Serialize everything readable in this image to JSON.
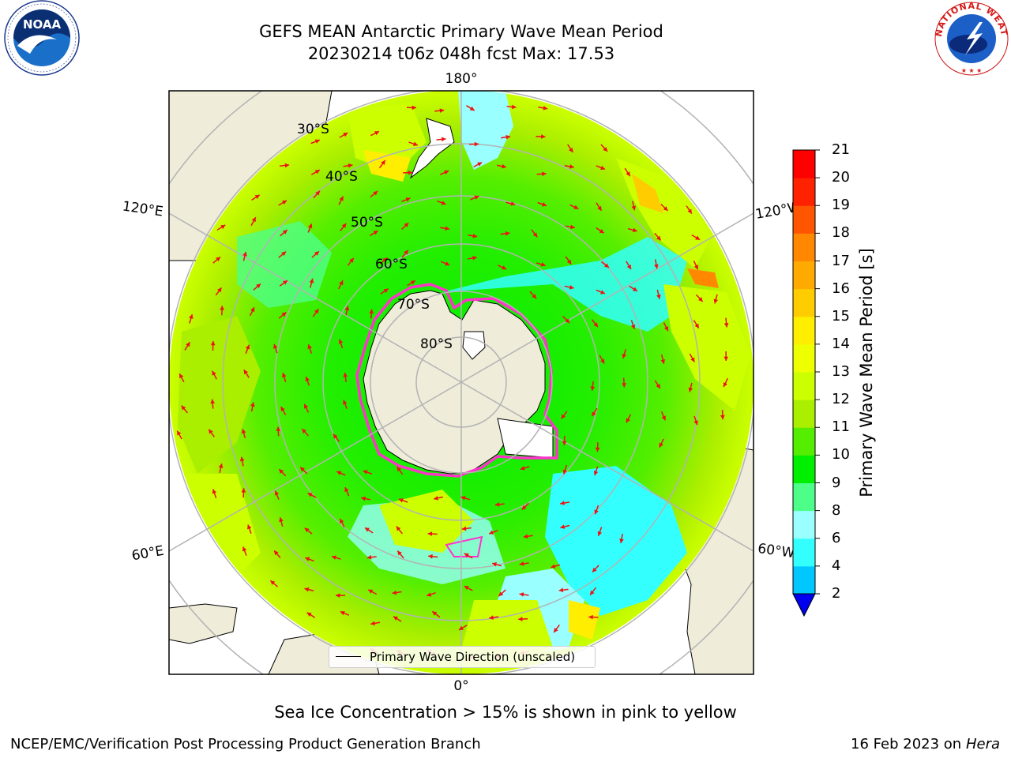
{
  "header": {
    "title_line1": "GEFS MEAN Antarctic Primary Wave Mean Period",
    "title_line2": "20230214 t06z 048h fcst   Max: 17.53"
  },
  "logos": {
    "noaa": {
      "text": "NOAA",
      "ring_text": "NATIONAL OCEANIC AND ATMOSPHERIC ADMINISTRATION · U.S. DEPARTMENT OF COMMERCE"
    },
    "nws": {
      "ring_text": "NATIONAL WEATHER SERVICE"
    }
  },
  "map": {
    "longitude_labels": {
      "top": "180°",
      "bottom": "0°",
      "left_upper": "120°E",
      "left_lower": "60°E",
      "right_upper": "120°W",
      "right_lower": "60°W"
    },
    "latitude_labels": [
      "30°S",
      "40°S",
      "50°S",
      "60°S",
      "70°S",
      "80°S"
    ],
    "legend_label": "Primary Wave Direction (unscaled)",
    "colors": {
      "land": "#efecda",
      "ice_edge": "#ff33cc",
      "arrow": "#ee1111",
      "grid": "#b3b3b3"
    }
  },
  "colorbar": {
    "label": "Primary Wave Mean Period [s]",
    "ticks": [
      "2",
      "4",
      "6",
      "8",
      "9",
      "10",
      "11",
      "12",
      "13",
      "14",
      "15",
      "16",
      "17",
      "18",
      "19",
      "20",
      "21"
    ],
    "colors": [
      "#0072ff",
      "#00c8ff",
      "#33ffff",
      "#99ffff",
      "#4dff88",
      "#00ee00",
      "#55ee00",
      "#aaee00",
      "#ccff00",
      "#eeff00",
      "#ffee00",
      "#ffcc00",
      "#ffaa00",
      "#ff8800",
      "#ff5500",
      "#ff2200",
      "#ff0000"
    ],
    "underflow_color": "#0000ee"
  },
  "footer": {
    "note": "Sea Ice Concentration > 15% is shown in pink to yellow",
    "credit": "NCEP/EMC/Verification Post Processing Product Generation Branch",
    "date_prefix": "16 Feb 2023 on",
    "machine": "Hera"
  }
}
